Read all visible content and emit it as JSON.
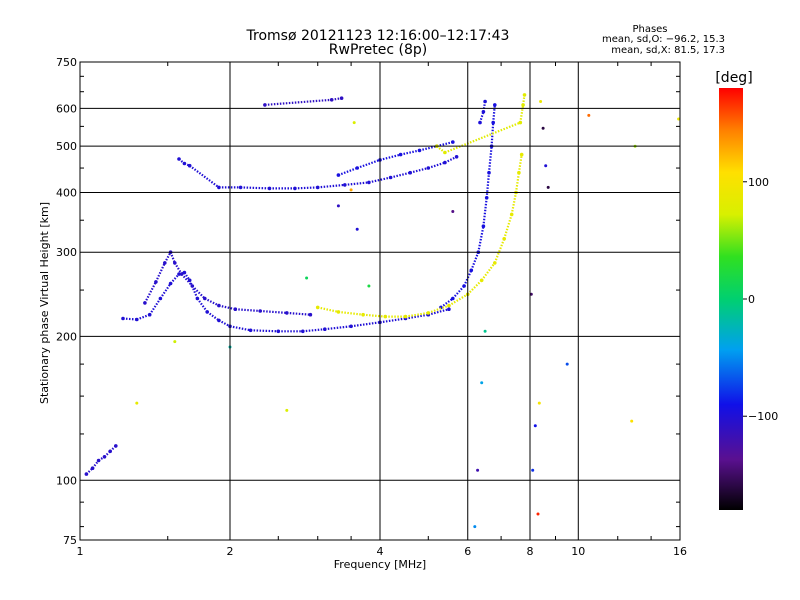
{
  "chart_data": {
    "type": "scatter",
    "title": "Tromsø 20121123 12:16:00–12:17:43",
    "subtitle": "RwPretec (8p)",
    "xlabel": "Frequency [MHz]",
    "ylabel": "Stationary phase Virtual Height [km]",
    "x_scale": "log",
    "y_scale": "log",
    "xlim": [
      1,
      16
    ],
    "ylim": [
      75,
      750
    ],
    "x_ticks": [
      1,
      2,
      4,
      6,
      8,
      10,
      16
    ],
    "x_tick_labels": [
      "1",
      "2",
      "4",
      "6",
      "8",
      "10",
      "16"
    ],
    "y_ticks": [
      75,
      100,
      200,
      300,
      400,
      500,
      600,
      750
    ],
    "y_tick_labels": [
      "75",
      "100",
      "200",
      "300",
      "400",
      "500",
      "600",
      "750"
    ],
    "grid": true,
    "colorbar": {
      "label": "[deg]",
      "range": [
        -180,
        180
      ],
      "ticks": [
        100,
        0,
        -100
      ],
      "tick_labels": [
        "100",
        "0",
        "−100"
      ]
    },
    "stats_title": "Phases",
    "stats": [
      "mean, sd,O: −96.2, 15.3",
      "mean, sd,X:  81.5, 17.3"
    ],
    "traces": [
      {
        "phase": -100,
        "points": [
          [
            1.22,
            218
          ],
          [
            1.3,
            217
          ],
          [
            1.38,
            222
          ],
          [
            1.45,
            240
          ],
          [
            1.52,
            258
          ],
          [
            1.58,
            270
          ],
          [
            1.62,
            272
          ],
          [
            1.66,
            262
          ],
          [
            1.72,
            240
          ],
          [
            1.8,
            225
          ],
          [
            1.9,
            216
          ],
          [
            2.0,
            210
          ],
          [
            2.2,
            206
          ],
          [
            2.5,
            205
          ],
          [
            2.8,
            205
          ],
          [
            3.1,
            207
          ],
          [
            3.5,
            210
          ],
          [
            4.0,
            214
          ],
          [
            4.5,
            218
          ],
          [
            5.0,
            222
          ],
          [
            5.5,
            228
          ]
        ]
      },
      {
        "phase": -105,
        "points": [
          [
            1.35,
            235
          ],
          [
            1.42,
            260
          ],
          [
            1.48,
            285
          ],
          [
            1.52,
            300
          ],
          [
            1.55,
            285
          ],
          [
            1.6,
            270
          ],
          [
            1.68,
            255
          ],
          [
            1.78,
            240
          ],
          [
            1.9,
            232
          ],
          [
            2.05,
            228
          ],
          [
            2.3,
            226
          ],
          [
            2.6,
            224
          ],
          [
            2.9,
            222
          ]
        ]
      },
      {
        "phase": -95,
        "points": [
          [
            5.3,
            230
          ],
          [
            5.6,
            240
          ],
          [
            5.9,
            255
          ],
          [
            6.1,
            275
          ],
          [
            6.3,
            300
          ],
          [
            6.45,
            340
          ],
          [
            6.55,
            390
          ],
          [
            6.62,
            440
          ],
          [
            6.7,
            500
          ],
          [
            6.75,
            560
          ],
          [
            6.8,
            610
          ]
        ]
      },
      {
        "phase": -98,
        "points": [
          [
            6.35,
            560
          ],
          [
            6.45,
            590
          ],
          [
            6.5,
            620
          ]
        ]
      },
      {
        "phase": -100,
        "points": [
          [
            1.58,
            470
          ],
          [
            1.62,
            460
          ],
          [
            1.66,
            455
          ],
          [
            1.9,
            410
          ],
          [
            2.1,
            410
          ],
          [
            2.4,
            408
          ],
          [
            2.7,
            408
          ],
          [
            3.0,
            410
          ],
          [
            3.4,
            415
          ],
          [
            3.8,
            420
          ],
          [
            4.2,
            430
          ],
          [
            4.6,
            440
          ],
          [
            5.0,
            450
          ],
          [
            5.4,
            462
          ],
          [
            5.7,
            475
          ]
        ]
      },
      {
        "phase": -95,
        "points": [
          [
            3.3,
            435
          ],
          [
            3.6,
            450
          ],
          [
            4.0,
            468
          ],
          [
            4.4,
            480
          ],
          [
            4.8,
            490
          ],
          [
            5.2,
            500
          ],
          [
            5.6,
            510
          ]
        ]
      },
      {
        "phase": -105,
        "points": [
          [
            1.03,
            103
          ],
          [
            1.06,
            106
          ],
          [
            1.09,
            110
          ],
          [
            1.12,
            112
          ],
          [
            1.15,
            115
          ],
          [
            1.18,
            118
          ]
        ]
      },
      {
        "phase": -110,
        "points": [
          [
            2.35,
            610
          ],
          [
            3.2,
            625
          ],
          [
            3.35,
            630
          ]
        ]
      },
      {
        "phase": 85,
        "points": [
          [
            3.0,
            230
          ],
          [
            3.3,
            225
          ],
          [
            3.7,
            222
          ],
          [
            4.1,
            220
          ],
          [
            4.5,
            220
          ],
          [
            5.0,
            224
          ],
          [
            5.5,
            232
          ],
          [
            6.0,
            245
          ],
          [
            6.4,
            262
          ],
          [
            6.8,
            285
          ],
          [
            7.1,
            320
          ],
          [
            7.35,
            360
          ],
          [
            7.5,
            400
          ],
          [
            7.6,
            440
          ],
          [
            7.7,
            480
          ]
        ]
      },
      {
        "phase": 80,
        "points": [
          [
            5.2,
            500
          ],
          [
            5.4,
            485
          ],
          [
            7.65,
            560
          ],
          [
            7.75,
            610
          ],
          [
            7.8,
            640
          ]
        ]
      }
    ],
    "scatter_points": [
      [
        1.55,
        195,
        70
      ],
      [
        1.3,
        145,
        85
      ],
      [
        2.6,
        140,
        75
      ],
      [
        2.0,
        190,
        -20
      ],
      [
        2.85,
        265,
        10
      ],
      [
        3.3,
        375,
        -110
      ],
      [
        3.5,
        405,
        130
      ],
      [
        3.55,
        560,
        75
      ],
      [
        3.6,
        335,
        -100
      ],
      [
        3.8,
        255,
        20
      ],
      [
        5.6,
        365,
        -140
      ],
      [
        6.2,
        80,
        -50
      ],
      [
        6.28,
        105,
        -120
      ],
      [
        6.4,
        160,
        -40
      ],
      [
        6.5,
        205,
        -10
      ],
      [
        8.1,
        105,
        -80
      ],
      [
        8.3,
        85,
        170
      ],
      [
        8.2,
        130,
        -90
      ],
      [
        8.35,
        145,
        100
      ],
      [
        8.4,
        620,
        90
      ],
      [
        8.5,
        545,
        -160
      ],
      [
        8.6,
        455,
        -100
      ],
      [
        8.7,
        410,
        -160
      ],
      [
        8.05,
        245,
        -150
      ],
      [
        9.5,
        175,
        -70
      ],
      [
        10.5,
        580,
        150
      ],
      [
        12.8,
        133,
        105
      ],
      [
        13.0,
        500,
        60
      ],
      [
        15.9,
        570,
        90
      ]
    ]
  }
}
